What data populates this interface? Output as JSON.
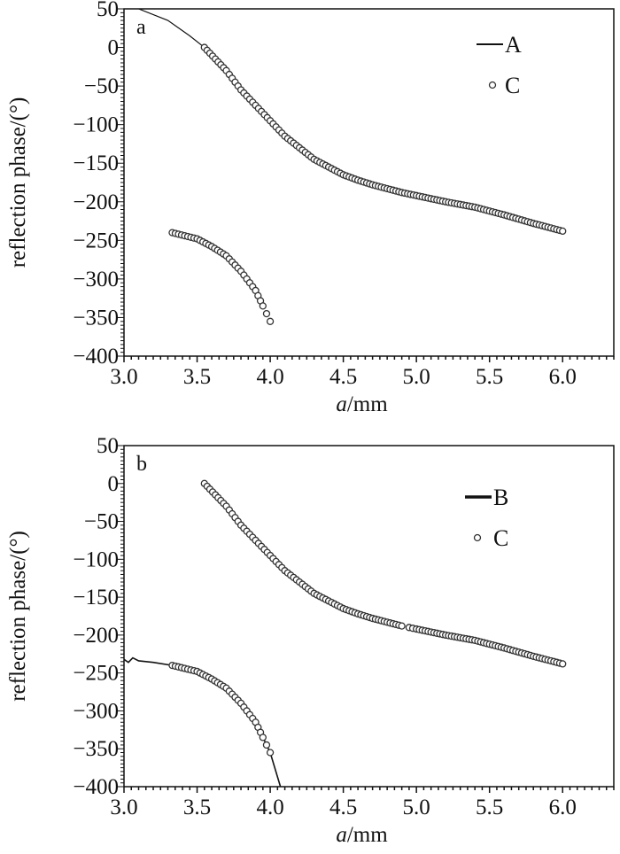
{
  "chart_data": [
    {
      "type": "line",
      "panel_label": "a",
      "xlabel_italic": "a",
      "xlabel_unit": "/mm",
      "ylabel": "reflection phase/(°)",
      "xlim": [
        3.0,
        6.35
      ],
      "ylim": [
        -400,
        50
      ],
      "xticks": [
        "3.0",
        "3.5",
        "4.0",
        "4.5",
        "5.0",
        "5.5",
        "6.0"
      ],
      "yticks": [
        "50",
        "0",
        "-50",
        "-100",
        "-150",
        "-200",
        "-250",
        "-300",
        "-350",
        "-400"
      ],
      "legend": [
        "A",
        "C"
      ],
      "legend_position": "top-right",
      "series": [
        {
          "name": "A",
          "style": "line",
          "x": [
            3.1,
            3.3,
            3.45,
            3.55,
            3.7,
            3.8,
            3.9,
            4.0,
            4.1,
            4.2,
            4.3,
            4.4,
            4.5,
            4.6,
            4.7,
            4.8,
            4.9,
            5.0,
            5.2,
            5.4,
            5.6,
            5.8,
            6.0
          ],
          "y": [
            50,
            35,
            15,
            0,
            -30,
            -55,
            -75,
            -95,
            -115,
            -130,
            -145,
            -155,
            -165,
            -172,
            -178,
            -183,
            -188,
            -192,
            -200,
            -207,
            -217,
            -228,
            -238
          ]
        },
        {
          "name": "C",
          "style": "markers",
          "segments": [
            {
              "x": [
                3.55,
                3.7,
                3.8,
                3.9,
                4.0,
                4.1,
                4.2,
                4.3,
                4.4,
                4.5,
                4.6,
                4.7,
                4.8,
                4.9,
                5.0,
                5.2,
                5.4,
                5.6,
                5.8,
                6.0
              ],
              "y": [
                0,
                -30,
                -55,
                -75,
                -95,
                -115,
                -130,
                -145,
                -155,
                -165,
                -172,
                -178,
                -183,
                -188,
                -192,
                -200,
                -207,
                -217,
                -228,
                -238
              ]
            },
            {
              "x": [
                3.33,
                3.5,
                3.6,
                3.7,
                3.8,
                3.9,
                3.95,
                4.0
              ],
              "y": [
                -240,
                -248,
                -258,
                -270,
                -290,
                -315,
                -335,
                -355
              ]
            }
          ]
        }
      ]
    },
    {
      "type": "line",
      "panel_label": "b",
      "xlabel_italic": "a",
      "xlabel_unit": "/mm",
      "ylabel": "reflection phase/(°)",
      "xlim": [
        3.0,
        6.35
      ],
      "ylim": [
        -400,
        50
      ],
      "xticks": [
        "3.0",
        "3.5",
        "4.0",
        "4.5",
        "5.0",
        "5.5",
        "6.0"
      ],
      "yticks": [
        "50",
        "0",
        "-50",
        "-100",
        "-150",
        "-200",
        "-250",
        "-300",
        "-350",
        "-400"
      ],
      "legend": [
        "B",
        "C"
      ],
      "legend_position": "top-right",
      "series": [
        {
          "name": "B",
          "style": "line",
          "x": [
            3.0,
            3.03,
            3.06,
            3.1,
            3.2,
            3.33,
            3.5,
            3.6,
            3.7,
            3.8,
            3.9,
            3.95,
            4.0,
            4.07
          ],
          "y": [
            -232,
            -236,
            -230,
            -234,
            -236,
            -240,
            -248,
            -258,
            -270,
            -290,
            -315,
            -335,
            -355,
            -400
          ]
        },
        {
          "name": "C",
          "style": "markers",
          "segments": [
            {
              "x": [
                3.55,
                3.7,
                3.8,
                3.9,
                4.0,
                4.1,
                4.2,
                4.3,
                4.4,
                4.5,
                4.6,
                4.7,
                4.8,
                4.9
              ],
              "y": [
                0,
                -30,
                -55,
                -75,
                -95,
                -115,
                -130,
                -145,
                -155,
                -165,
                -172,
                -178,
                -183,
                -188
              ]
            },
            {
              "x": [
                4.95,
                5.0,
                5.2,
                5.4,
                5.6,
                5.8,
                6.0
              ],
              "y": [
                -190,
                -192,
                -200,
                -207,
                -217,
                -228,
                -238
              ]
            },
            {
              "x": [
                3.33,
                3.5,
                3.6,
                3.7,
                3.8,
                3.9,
                3.95,
                4.0
              ],
              "y": [
                -240,
                -248,
                -258,
                -270,
                -290,
                -315,
                -335,
                -355
              ]
            }
          ]
        }
      ]
    }
  ]
}
